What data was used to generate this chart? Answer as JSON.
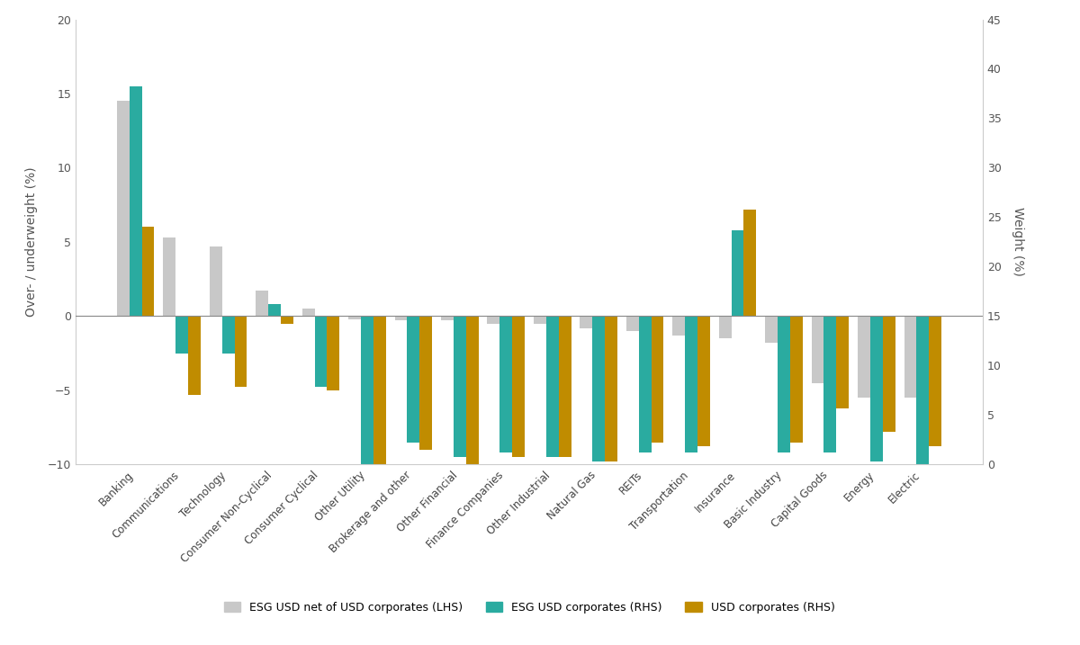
{
  "categories": [
    "Banking",
    "Communications",
    "Technology",
    "Consumer Non-Cyclical",
    "Consumer Cyclical",
    "Other Utility",
    "Brokerage and other",
    "Other Financial",
    "Finance Companies",
    "Other Industrial",
    "Natural Gas",
    "REITs",
    "Transportation",
    "Insurance",
    "Basic Industry",
    "Capital Goods",
    "Energy",
    "Electric"
  ],
  "lhs_values": [
    14.5,
    5.3,
    4.7,
    1.7,
    0.5,
    -0.2,
    -0.3,
    -0.3,
    -0.5,
    -0.5,
    -0.8,
    -1.0,
    -1.3,
    -1.5,
    -1.8,
    -4.5,
    -5.5,
    -5.5
  ],
  "esg_values": [
    15.5,
    -2.5,
    -2.5,
    0.8,
    -4.8,
    -10.0,
    -8.5,
    -9.5,
    -9.2,
    -9.5,
    -9.8,
    -9.2,
    -9.2,
    5.8,
    -9.2,
    -9.2,
    -9.8,
    -10.0
  ],
  "usd_values": [
    6.0,
    -5.3,
    -4.8,
    -0.5,
    -5.0,
    -10.0,
    -9.0,
    -10.0,
    -9.5,
    -9.5,
    -9.8,
    -8.5,
    -8.8,
    7.2,
    -8.5,
    -6.2,
    -7.8,
    -8.8
  ],
  "color_lhs": "#c8c8c8",
  "color_esg": "#2aaba0",
  "color_usd": "#c08c00",
  "ylabel_left": "Over- / underweight (%)",
  "ylabel_right": "Weight (%)",
  "ylim_left": [
    -10,
    20
  ],
  "ylim_right": [
    0,
    45
  ],
  "yticks_left": [
    -10,
    -5,
    0,
    5,
    10,
    15,
    20
  ],
  "yticks_right": [
    0,
    5,
    10,
    15,
    20,
    25,
    30,
    35,
    40,
    45
  ],
  "background_color": "#ffffff",
  "legend_labels": [
    "ESG USD net of USD corporates (LHS)",
    "ESG USD corporates (RHS)",
    "USD corporates (RHS)"
  ]
}
